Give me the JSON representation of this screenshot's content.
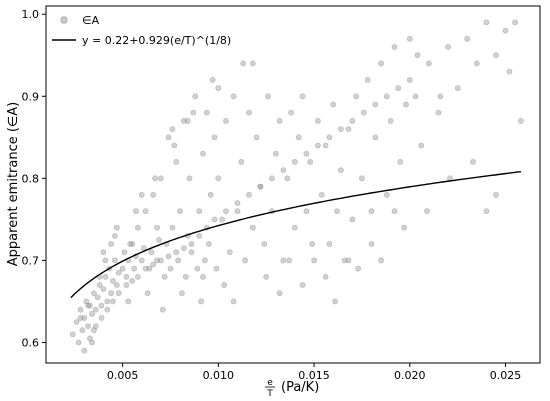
{
  "chart_data": {
    "type": "scatter",
    "xlabel_fraction_numerator": "e",
    "xlabel_fraction_denominator": "T",
    "xlabel_units": "(Pa/K)",
    "ylabel": "Apparent emitrance (∈A)",
    "xlim": [
      0.001,
      0.0268
    ],
    "ylim": [
      0.575,
      1.01
    ],
    "xticks": [
      0.005,
      0.01,
      0.015,
      0.02,
      0.025
    ],
    "xtick_labels": [
      "0.005",
      "0.010",
      "0.015",
      "0.020",
      "0.025"
    ],
    "yticks": [
      0.6,
      0.7,
      0.8,
      0.9,
      1.0
    ],
    "ytick_labels": [
      "0.6",
      "0.7",
      "0.8",
      "0.9",
      "1.0"
    ],
    "grid": false,
    "legend": {
      "placement": "top-left",
      "scatter_label": "∈A",
      "fit_label": "y = 0.22+0.929(e/T)^(1/8)"
    },
    "colors": {
      "points": "#999999",
      "fit": "#000000"
    },
    "series": [
      {
        "name": "∈A",
        "kind": "scatter",
        "x": [
          0.0024,
          0.0026,
          0.0027,
          0.0028,
          0.0029,
          0.003,
          0.0031,
          0.0032,
          0.0033,
          0.0034,
          0.0035,
          0.0036,
          0.0037,
          0.0038,
          0.0039,
          0.004,
          0.0041,
          0.0042,
          0.0043,
          0.0044,
          0.0045,
          0.0046,
          0.0047,
          0.0048,
          0.005,
          0.0051,
          0.0052,
          0.0053,
          0.0055,
          0.0056,
          0.0057,
          0.0058,
          0.006,
          0.0061,
          0.0062,
          0.0064,
          0.0065,
          0.0066,
          0.0068,
          0.0069,
          0.007,
          0.0072,
          0.0073,
          0.0074,
          0.0075,
          0.0076,
          0.0078,
          0.0079,
          0.008,
          0.0082,
          0.0083,
          0.0084,
          0.0085,
          0.0086,
          0.0088,
          0.0089,
          0.009,
          0.0092,
          0.0093,
          0.0094,
          0.0095,
          0.0096,
          0.0098,
          0.0099,
          0.01,
          0.0102,
          0.0104,
          0.0106,
          0.0108,
          0.011,
          0.0112,
          0.0114,
          0.0116,
          0.0118,
          0.012,
          0.0122,
          0.0124,
          0.0126,
          0.0128,
          0.013,
          0.0132,
          0.0134,
          0.0136,
          0.0138,
          0.014,
          0.0142,
          0.0144,
          0.0146,
          0.0148,
          0.015,
          0.0152,
          0.0154,
          0.0156,
          0.0158,
          0.016,
          0.0162,
          0.0164,
          0.0166,
          0.0168,
          0.017,
          0.0172,
          0.0175,
          0.0178,
          0.018,
          0.0182,
          0.0185,
          0.0188,
          0.019,
          0.0192,
          0.0195,
          0.0198,
          0.02,
          0.0203,
          0.0206,
          0.021,
          0.0215,
          0.022,
          0.0225,
          0.023,
          0.0235,
          0.024,
          0.0245,
          0.025,
          0.0255,
          0.0258,
          0.003,
          0.0033,
          0.0036,
          0.0039,
          0.0042,
          0.0045,
          0.0048,
          0.0052,
          0.0055,
          0.0058,
          0.0062,
          0.0066,
          0.007,
          0.0074,
          0.0078,
          0.0082,
          0.0086,
          0.009,
          0.0094,
          0.0098,
          0.0104,
          0.011,
          0.0116,
          0.0122,
          0.0128,
          0.0134,
          0.014,
          0.0146,
          0.0152,
          0.0158,
          0.0164,
          0.017,
          0.0176,
          0.0182,
          0.0188,
          0.0194,
          0.02,
          0.0028,
          0.0032,
          0.0035,
          0.0038,
          0.0041,
          0.0044,
          0.0047,
          0.0053,
          0.0057,
          0.0063,
          0.0067,
          0.0071,
          0.0077,
          0.0081,
          0.0087,
          0.0091,
          0.0097,
          0.0103,
          0.0113,
          0.0125,
          0.0137,
          0.0149,
          0.0161,
          0.0173,
          0.0185,
          0.0197,
          0.0209,
          0.0221,
          0.0233,
          0.0245,
          0.0034,
          0.004,
          0.0046,
          0.0054,
          0.006,
          0.0068,
          0.0076,
          0.0084,
          0.0092,
          0.01,
          0.0108,
          0.0118,
          0.0132,
          0.0144,
          0.0156,
          0.0168,
          0.018,
          0.0192,
          0.0204,
          0.0216,
          0.024,
          0.0252
        ],
        "y": [
          0.61,
          0.625,
          0.6,
          0.64,
          0.615,
          0.63,
          0.65,
          0.62,
          0.645,
          0.635,
          0.66,
          0.64,
          0.655,
          0.67,
          0.645,
          0.665,
          0.68,
          0.65,
          0.69,
          0.66,
          0.675,
          0.7,
          0.67,
          0.685,
          0.69,
          0.71,
          0.68,
          0.7,
          0.72,
          0.69,
          0.705,
          0.74,
          0.7,
          0.715,
          0.76,
          0.69,
          0.71,
          0.78,
          0.7,
          0.725,
          0.8,
          0.68,
          0.72,
          0.85,
          0.69,
          0.74,
          0.82,
          0.7,
          0.76,
          0.87,
          0.68,
          0.73,
          0.8,
          0.71,
          0.9,
          0.69,
          0.76,
          0.83,
          0.7,
          0.88,
          0.72,
          0.78,
          0.85,
          0.69,
          0.8,
          0.75,
          0.87,
          0.71,
          0.9,
          0.76,
          0.82,
          0.7,
          0.88,
          0.74,
          0.85,
          0.79,
          0.72,
          0.9,
          0.76,
          0.83,
          0.87,
          0.7,
          0.8,
          0.88,
          0.74,
          0.85,
          0.9,
          0.76,
          0.82,
          0.7,
          0.87,
          0.78,
          0.84,
          0.72,
          0.89,
          0.76,
          0.81,
          0.7,
          0.86,
          0.75,
          0.9,
          0.8,
          0.92,
          0.76,
          0.85,
          0.94,
          0.78,
          0.87,
          0.96,
          0.82,
          0.89,
          0.97,
          0.9,
          0.84,
          0.94,
          0.88,
          0.96,
          0.91,
          0.97,
          0.94,
          0.99,
          0.95,
          0.98,
          0.99,
          0.87,
          0.59,
          0.605,
          0.62,
          0.63,
          0.64,
          0.65,
          0.66,
          0.67,
          0.675,
          0.68,
          0.69,
          0.695,
          0.7,
          0.705,
          0.71,
          0.715,
          0.72,
          0.73,
          0.74,
          0.75,
          0.76,
          0.77,
          0.78,
          0.79,
          0.8,
          0.81,
          0.82,
          0.83,
          0.84,
          0.85,
          0.86,
          0.87,
          0.88,
          0.89,
          0.9,
          0.91,
          0.92,
          0.63,
          0.645,
          0.615,
          0.68,
          0.7,
          0.72,
          0.74,
          0.65,
          0.76,
          0.66,
          0.8,
          0.64,
          0.84,
          0.66,
          0.88,
          0.65,
          0.92,
          0.67,
          0.94,
          0.68,
          0.7,
          0.72,
          0.65,
          0.69,
          0.7,
          0.74,
          0.76,
          0.8,
          0.82,
          0.78,
          0.6,
          0.71,
          0.73,
          0.72,
          0.78,
          0.74,
          0.86,
          0.87,
          0.68,
          0.91,
          0.65,
          0.94,
          0.66,
          0.67,
          0.68,
          0.7,
          0.72,
          0.76,
          0.95,
          0.9,
          0.76,
          0.93
        ]
      },
      {
        "name": "y = 0.22+0.929(e/T)^(1/8)",
        "kind": "line",
        "intercept": 0.22,
        "coefficient": 0.929,
        "exponent": 0.125,
        "x_start": 0.0023,
        "x_end": 0.0258
      }
    ]
  }
}
